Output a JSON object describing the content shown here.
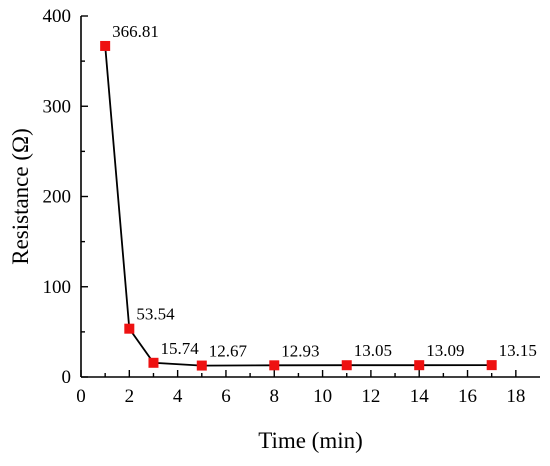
{
  "chart_data": {
    "type": "line",
    "title": "",
    "xlabel": "Time (min)",
    "ylabel": "Resistance (Ω)",
    "xlim": [
      0,
      19
    ],
    "ylim": [
      0,
      400
    ],
    "xticks": [
      0,
      2,
      4,
      6,
      8,
      10,
      12,
      14,
      16,
      18
    ],
    "yticks": [
      0,
      100,
      200,
      300,
      400
    ],
    "grid": false,
    "marker": "square",
    "marker_color": "#ee1111",
    "line_color": "#000000",
    "series": [
      {
        "x": [
          1,
          2,
          3,
          5,
          8,
          11,
          14,
          17
        ],
        "y": [
          366.81,
          53.54,
          15.74,
          12.67,
          12.93,
          13.05,
          13.09,
          13.15
        ],
        "labels": [
          "366.81",
          "53.54",
          "15.74",
          "12.67",
          "12.93",
          "13.05",
          "13.09",
          "13.15"
        ]
      }
    ]
  }
}
